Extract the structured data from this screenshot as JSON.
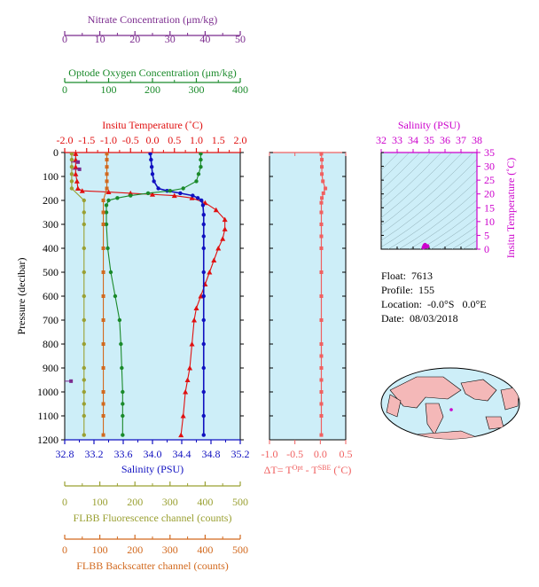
{
  "colors": {
    "panel_bg": "#cdeef8",
    "nitrate": "#7b2b8e",
    "oxygen": "#1a8a2a",
    "temperature": "#e01010",
    "salinity": "#1010c0",
    "fluorescence": "#9aa032",
    "backscatter": "#d2691e",
    "delta_t": "#f06060",
    "ts_axis": "#cc00cc",
    "map_land": "#f4b8b8"
  },
  "info": {
    "float": "Float:  7613",
    "profile": "Profile:  155",
    "location": "Location:  -0.0°S   0.0°E",
    "date": "Date:  08/03/2018"
  },
  "chart_data": [
    {
      "type": "line",
      "title": "",
      "ylabel": "Pressure (decibar)",
      "ylim": [
        1200,
        0
      ],
      "yticks": [
        0,
        100,
        200,
        300,
        400,
        500,
        600,
        700,
        800,
        900,
        1000,
        1100,
        1200
      ],
      "axes": {
        "nitrate": {
          "label": "Nitrate Concentration (μm/kg)",
          "range": [
            0,
            50
          ],
          "ticks": [
            0,
            10,
            20,
            30,
            40,
            50
          ]
        },
        "oxygen": {
          "label": "Optode Oxygen Concentration (μm/kg)",
          "range": [
            0,
            400
          ],
          "ticks": [
            0,
            100,
            200,
            300,
            400
          ]
        },
        "temperature": {
          "label": "Insitu Temperature (˚C)",
          "range": [
            -2.0,
            2.0
          ],
          "ticks": [
            "-2.0",
            "-1.5",
            "-1.0",
            "-0.5",
            "0.0",
            "0.5",
            "1.0",
            "1.5",
            "2.0"
          ]
        },
        "salinity": {
          "label": "Salinity (PSU)",
          "range": [
            32.8,
            35.2
          ],
          "ticks": [
            "32.8",
            "33.2",
            "33.6",
            "34.0",
            "34.4",
            "34.8",
            "35.2"
          ]
        },
        "fluorescence": {
          "label": "FLBB Fluorescence channel (counts)",
          "range": [
            0,
            500
          ],
          "ticks": [
            0,
            100,
            200,
            300,
            400,
            500
          ]
        },
        "backscatter": {
          "label": "FLBB Backscatter channel (counts)",
          "range": [
            0,
            500
          ],
          "ticks": [
            0,
            100,
            200,
            300,
            400,
            500
          ]
        }
      },
      "series": [
        {
          "key": "temperature",
          "marker": "triangle",
          "x": [
            -1.75,
            -1.75,
            -1.75,
            -1.75,
            -1.72,
            -1.7,
            -1.6,
            -1.0,
            -0.5,
            0.0,
            0.5,
            0.9,
            1.2,
            1.45,
            1.65,
            1.65,
            1.6,
            1.5,
            1.4,
            1.3,
            1.2,
            1.1,
            1.0,
            0.95,
            0.9,
            0.85,
            0.8,
            0.75,
            0.7,
            0.65
          ],
          "y": [
            5,
            30,
            60,
            90,
            120,
            150,
            160,
            165,
            170,
            175,
            180,
            190,
            210,
            240,
            280,
            320,
            360,
            400,
            450,
            500,
            550,
            600,
            650,
            700,
            800,
            900,
            950,
            1000,
            1100,
            1180
          ]
        },
        {
          "key": "salinity",
          "marker": "circle",
          "x": [
            33.97,
            33.98,
            33.99,
            34.0,
            34.02,
            34.08,
            34.2,
            34.38,
            34.55,
            34.62,
            34.67,
            34.69,
            34.7,
            34.7,
            34.7,
            34.7,
            34.7,
            34.7,
            34.7,
            34.7,
            34.7,
            34.7,
            34.7,
            34.7
          ],
          "y": [
            5,
            30,
            60,
            90,
            120,
            150,
            160,
            170,
            180,
            190,
            200,
            220,
            260,
            300,
            350,
            400,
            500,
            600,
            700,
            800,
            900,
            1000,
            1100,
            1180
          ]
        },
        {
          "key": "oxygen",
          "marker": "circle",
          "x": [
            310,
            310,
            310,
            305,
            300,
            270,
            240,
            190,
            150,
            120,
            100,
            95,
            95,
            95,
            98,
            105,
            115,
            125,
            128,
            130,
            132,
            132,
            132,
            132
          ],
          "y": [
            5,
            30,
            60,
            90,
            120,
            150,
            160,
            170,
            180,
            190,
            200,
            220,
            250,
            300,
            400,
            500,
            600,
            700,
            800,
            900,
            1000,
            1050,
            1100,
            1180
          ]
        },
        {
          "key": "fluorescence",
          "marker": "circle",
          "x": [
            20,
            20,
            20,
            20,
            20,
            20,
            55,
            55,
            55,
            55,
            55,
            55,
            55,
            55,
            55,
            55,
            55,
            55,
            55,
            55
          ],
          "y": [
            5,
            30,
            60,
            90,
            120,
            150,
            200,
            250,
            300,
            400,
            500,
            600,
            700,
            800,
            900,
            950,
            1000,
            1050,
            1100,
            1180
          ]
        },
        {
          "key": "backscatter",
          "marker": "square",
          "x": [
            120,
            120,
            120,
            120,
            120,
            120,
            110,
            110,
            110,
            110,
            110,
            110,
            110,
            110,
            110,
            110,
            110,
            110,
            110
          ],
          "y": [
            5,
            30,
            60,
            90,
            120,
            150,
            200,
            250,
            300,
            400,
            500,
            600,
            700,
            800,
            900,
            1000,
            1050,
            1100,
            1180
          ]
        },
        {
          "key": "nitrate",
          "marker": "square",
          "x": [
            3.8,
            4.2,
            1.8
          ],
          "y": [
            40,
            70,
            955
          ]
        }
      ]
    },
    {
      "type": "line",
      "xlabel": "ΔT= Tᴼᵖᵗ - Tˢᴮᴱ (˚C)",
      "xlabel_main": "ΔT= T",
      "xlabel_sup1": "Opt",
      "xlabel_mid": " - T",
      "xlabel_sup2": "SBE",
      "xlabel_end": " (˚C)",
      "xlim": [
        -1.0,
        0.5
      ],
      "xticks": [
        "-1.0",
        "-0.5",
        "0.0",
        "0.5"
      ],
      "ylim": [
        1200,
        0
      ],
      "series": [
        {
          "name": "delta_t",
          "marker": "square",
          "x": [
            0.02,
            0.03,
            0.03,
            0.03,
            0.05,
            0.1,
            0.06,
            0.03,
            0.02,
            0.02,
            0.02,
            0.02,
            0.02,
            0.02,
            0.02,
            0.02,
            0.02,
            0.02,
            0.02,
            0.02,
            0.02,
            0.02,
            0.02,
            0.02
          ],
          "y": [
            5,
            30,
            60,
            90,
            120,
            150,
            170,
            190,
            210,
            250,
            300,
            350,
            400,
            500,
            600,
            700,
            800,
            850,
            900,
            950,
            1000,
            1050,
            1100,
            1180
          ]
        }
      ]
    },
    {
      "type": "scatter",
      "title": "Salinity (PSU)",
      "xlabel": "Salinity (PSU)",
      "ylabel": "Insitu Temperature (˚C)",
      "xlim": [
        32,
        38
      ],
      "ylim": [
        0,
        35
      ],
      "xticks": [
        "32",
        "33",
        "34",
        "35",
        "36",
        "37",
        "38"
      ],
      "yticks": [
        "0",
        "5",
        "10",
        "15",
        "20",
        "25",
        "30",
        "35"
      ],
      "x": [
        34.65,
        34.68,
        34.7,
        34.7,
        34.72,
        34.75,
        34.8,
        34.85,
        34.9
      ],
      "y": [
        0.6,
        0.8,
        1.0,
        1.2,
        1.4,
        1.6,
        1.2,
        0.9,
        1.1
      ]
    }
  ]
}
